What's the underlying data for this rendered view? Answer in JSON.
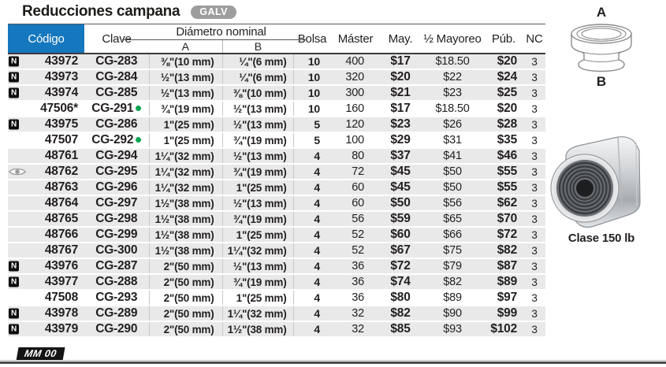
{
  "title": "Reducciones campana",
  "material_badge": "GALV",
  "colors": {
    "header_blue": "#1577bd",
    "row_gray": "#e9e9e9",
    "new_badge_black": "#0d0d0d",
    "green_dot": "#00a651",
    "galv_gray": "#9d9d9d"
  },
  "table": {
    "columns": {
      "codigo": "Código",
      "clave": "Clave",
      "diametro_group": "Diámetro nominal",
      "a": "A",
      "b": "B",
      "bolsa": "Bolsa",
      "master": "Máster",
      "may": "May.",
      "medio_mayoreo": "½ Mayoreo",
      "pub": "Púb.",
      "nc": "NC"
    },
    "rows": [
      {
        "new": true,
        "eye": false,
        "codigo": "43972",
        "clave": "CG-283",
        "dot": false,
        "a": "⅜\"(10 mm)",
        "b": "¼\"(6 mm)",
        "bolsa": "10",
        "master": "400",
        "may": "$17",
        "mayoreo": "$18.50",
        "pub": "$20",
        "nc": "3",
        "white": false
      },
      {
        "new": true,
        "eye": false,
        "codigo": "43973",
        "clave": "CG-284",
        "dot": false,
        "a": "½\"(13 mm)",
        "b": "¼\"(6 mm)",
        "bolsa": "10",
        "master": "320",
        "may": "$20",
        "mayoreo": "$22",
        "pub": "$24",
        "nc": "3",
        "white": false
      },
      {
        "new": true,
        "eye": false,
        "codigo": "43974",
        "clave": "CG-285",
        "dot": false,
        "a": "½\"(13 mm)",
        "b": "⅜\"(10 mm)",
        "bolsa": "10",
        "master": "300",
        "may": "$21",
        "mayoreo": "$23",
        "pub": "$25",
        "nc": "3",
        "white": false
      },
      {
        "new": false,
        "eye": false,
        "codigo": "47506*",
        "clave": "CG-291",
        "dot": true,
        "a": "¾\"(19 mm)",
        "b": "½\"(13 mm)",
        "bolsa": "10",
        "master": "160",
        "may": "$17",
        "mayoreo": "$18.50",
        "pub": "$20",
        "nc": "3",
        "white": true
      },
      {
        "new": true,
        "eye": false,
        "codigo": "43975",
        "clave": "CG-286",
        "dot": false,
        "a": "1\"(25 mm)",
        "b": "½\"(13 mm)",
        "bolsa": "5",
        "master": "120",
        "may": "$23",
        "mayoreo": "$26",
        "pub": "$28",
        "nc": "3",
        "white": false
      },
      {
        "new": false,
        "eye": false,
        "codigo": "47507",
        "clave": "CG-292",
        "dot": true,
        "a": "1\"(25 mm)",
        "b": "¾\"(19 mm)",
        "bolsa": "5",
        "master": "100",
        "may": "$29",
        "mayoreo": "$31",
        "pub": "$35",
        "nc": "3",
        "white": true
      },
      {
        "new": false,
        "eye": false,
        "codigo": "48761",
        "clave": "CG-294",
        "dot": false,
        "a": "1¼\"(32 mm)",
        "b": "½\"(13 mm)",
        "bolsa": "4",
        "master": "80",
        "may": "$37",
        "mayoreo": "$41",
        "pub": "$46",
        "nc": "3",
        "white": false
      },
      {
        "new": false,
        "eye": true,
        "codigo": "48762",
        "clave": "CG-295",
        "dot": false,
        "a": "1¼\"(32 mm)",
        "b": "¾\"(19 mm)",
        "bolsa": "4",
        "master": "72",
        "may": "$45",
        "mayoreo": "$50",
        "pub": "$55",
        "nc": "3",
        "white": false
      },
      {
        "new": false,
        "eye": false,
        "codigo": "48763",
        "clave": "CG-296",
        "dot": false,
        "a": "1¼\"(32 mm)",
        "b": "1\"(25 mm)",
        "bolsa": "4",
        "master": "60",
        "may": "$45",
        "mayoreo": "$50",
        "pub": "$55",
        "nc": "3",
        "white": false
      },
      {
        "new": false,
        "eye": false,
        "codigo": "48764",
        "clave": "CG-297",
        "dot": false,
        "a": "1½\"(38 mm)",
        "b": "½\"(13 mm)",
        "bolsa": "4",
        "master": "60",
        "may": "$50",
        "mayoreo": "$56",
        "pub": "$62",
        "nc": "3",
        "white": false
      },
      {
        "new": false,
        "eye": false,
        "codigo": "48765",
        "clave": "CG-298",
        "dot": false,
        "a": "1½\"(38 mm)",
        "b": "¾\"(19 mm)",
        "bolsa": "4",
        "master": "56",
        "may": "$59",
        "mayoreo": "$65",
        "pub": "$70",
        "nc": "3",
        "white": false
      },
      {
        "new": false,
        "eye": false,
        "codigo": "48766",
        "clave": "CG-299",
        "dot": false,
        "a": "1½\"(38 mm)",
        "b": "1\"(25 mm)",
        "bolsa": "4",
        "master": "52",
        "may": "$60",
        "mayoreo": "$66",
        "pub": "$72",
        "nc": "3",
        "white": false
      },
      {
        "new": false,
        "eye": false,
        "codigo": "48767",
        "clave": "CG-300",
        "dot": false,
        "a": "1½\"(38 mm)",
        "b": "1¼\"(32 mm)",
        "bolsa": "4",
        "master": "52",
        "may": "$67",
        "mayoreo": "$75",
        "pub": "$82",
        "nc": "3",
        "white": false
      },
      {
        "new": true,
        "eye": false,
        "codigo": "43976",
        "clave": "CG-287",
        "dot": false,
        "a": "2\"(50 mm)",
        "b": "½\"(13 mm)",
        "bolsa": "4",
        "master": "36",
        "may": "$72",
        "mayoreo": "$79",
        "pub": "$87",
        "nc": "3",
        "white": false
      },
      {
        "new": true,
        "eye": false,
        "codigo": "43977",
        "clave": "CG-288",
        "dot": false,
        "a": "2\"(50 mm)",
        "b": "¾\"(19 mm)",
        "bolsa": "4",
        "master": "36",
        "may": "$74",
        "mayoreo": "$82",
        "pub": "$89",
        "nc": "3",
        "white": false
      },
      {
        "new": false,
        "eye": false,
        "codigo": "47508",
        "clave": "CG-293",
        "dot": false,
        "a": "2\"(50 mm)",
        "b": "1\"(25 mm)",
        "bolsa": "4",
        "master": "36",
        "may": "$80",
        "mayoreo": "$89",
        "pub": "$97",
        "nc": "3",
        "white": true
      },
      {
        "new": true,
        "eye": false,
        "codigo": "43978",
        "clave": "CG-289",
        "dot": false,
        "a": "2\"(50 mm)",
        "b": "1¼\"(32 mm)",
        "bolsa": "4",
        "master": "32",
        "may": "$82",
        "mayoreo": "$90",
        "pub": "$99",
        "nc": "3",
        "white": false
      },
      {
        "new": true,
        "eye": false,
        "codigo": "43979",
        "clave": "CG-290",
        "dot": false,
        "a": "2\"(50 mm)",
        "b": "1½\"(38 mm)",
        "bolsa": "4",
        "master": "32",
        "may": "$85",
        "mayoreo": "$93",
        "pub": "$102",
        "nc": "3",
        "white": false
      }
    ]
  },
  "sidebar": {
    "label_a": "A",
    "label_b": "B",
    "caption": "Clase 150 lb"
  },
  "footer": {
    "badge": "MM 00"
  }
}
